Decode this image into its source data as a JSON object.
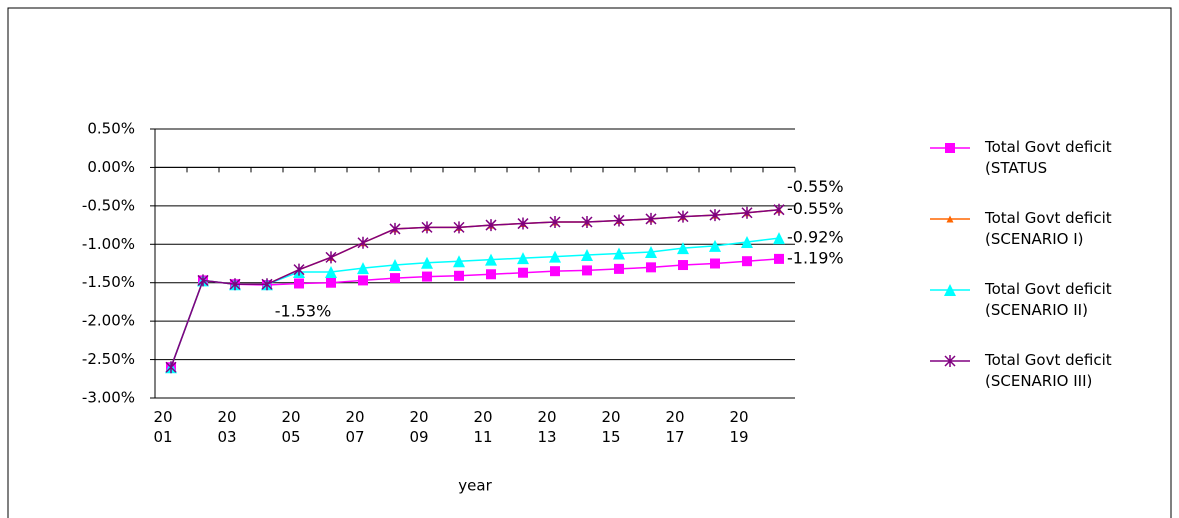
{
  "chart_data": {
    "type": "line",
    "x_label": "year",
    "categories": [
      "2001",
      null,
      "2003",
      null,
      "2005",
      null,
      "2007",
      null,
      "2009",
      null,
      "2011",
      null,
      "2013",
      null,
      "2015",
      null,
      "2017",
      null,
      "2019",
      null
    ],
    "ylim": [
      -3,
      0.5
    ],
    "yticks": [
      {
        "value": -3,
        "label": "-3.00%"
      },
      {
        "value": -2.5,
        "label": "-2.50%"
      },
      {
        "value": -2,
        "label": "-2.00%"
      },
      {
        "value": -1.5,
        "label": "-1.50%"
      },
      {
        "value": -1,
        "label": "-1.00%"
      },
      {
        "value": -0.5,
        "label": "-0.50%"
      },
      {
        "value": 0,
        "label": "0.00%"
      },
      {
        "value": 0.5,
        "label": "0.50%"
      }
    ],
    "grid": true,
    "legend": "right",
    "series": [
      {
        "name": "Total Govt deficit (STATUS",
        "color": "#ff00ff",
        "marker": "square",
        "values": [
          -2.6,
          -1.47,
          -1.52,
          -1.53,
          -1.51,
          -1.5,
          -1.47,
          -1.44,
          -1.42,
          -1.41,
          -1.39,
          -1.37,
          -1.35,
          -1.34,
          -1.32,
          -1.3,
          -1.27,
          -1.25,
          -1.22,
          -1.19
        ],
        "value_labels": [
          null,
          null,
          null,
          "-1.53%",
          null,
          null,
          null,
          null,
          null,
          null,
          null,
          null,
          null,
          null,
          null,
          null,
          null,
          null,
          null,
          "-1.19%"
        ],
        "value_label_colors": [
          null,
          null,
          null,
          "#000000",
          null,
          null,
          null,
          null,
          null,
          null,
          null,
          null,
          null,
          null,
          null,
          null,
          null,
          null,
          null,
          "#ff00ff"
        ]
      },
      {
        "name": "Total Govt deficit (SCENARIO I)",
        "color": "#ff6600",
        "marker": "small-triangle",
        "values": [
          -2.6,
          -1.47,
          -1.52,
          -1.52,
          -1.33,
          -1.17,
          -0.98,
          -0.8,
          -0.78,
          -0.78,
          -0.75,
          -0.73,
          -0.71,
          -0.71,
          -0.69,
          -0.67,
          -0.64,
          -0.62,
          -0.59,
          -0.55
        ],
        "value_labels": [
          null,
          null,
          null,
          null,
          null,
          null,
          null,
          null,
          null,
          null,
          null,
          null,
          null,
          null,
          null,
          null,
          null,
          null,
          null,
          "-0.55%"
        ],
        "value_label_colors": [
          null,
          null,
          null,
          null,
          null,
          null,
          null,
          null,
          null,
          null,
          null,
          null,
          null,
          null,
          null,
          null,
          null,
          null,
          null,
          "#ff6600"
        ]
      },
      {
        "name": "Total Govt deficit (SCENARIO II)",
        "color": "#00ffff",
        "marker": "triangle",
        "values": [
          -2.6,
          -1.47,
          -1.52,
          -1.52,
          -1.36,
          -1.36,
          -1.31,
          -1.27,
          -1.24,
          -1.22,
          -1.2,
          -1.18,
          -1.16,
          -1.14,
          -1.12,
          -1.1,
          -1.05,
          -1.02,
          -0.97,
          -0.92
        ],
        "value_labels": [
          null,
          null,
          null,
          null,
          null,
          null,
          null,
          null,
          null,
          null,
          null,
          null,
          null,
          null,
          null,
          null,
          null,
          null,
          null,
          "-0.92%"
        ],
        "value_label_colors": [
          null,
          null,
          null,
          null,
          null,
          null,
          null,
          null,
          null,
          null,
          null,
          null,
          null,
          null,
          null,
          null,
          null,
          null,
          null,
          "#00ffff"
        ]
      },
      {
        "name": "Total Govt deficit (SCENARIO III)",
        "color": "#800080",
        "marker": "asterisk",
        "values": [
          -2.6,
          -1.47,
          -1.52,
          -1.52,
          -1.33,
          -1.17,
          -0.98,
          -0.8,
          -0.78,
          -0.78,
          -0.75,
          -0.73,
          -0.71,
          -0.71,
          -0.69,
          -0.67,
          -0.64,
          -0.62,
          -0.59,
          -0.55
        ],
        "value_labels": [
          null,
          null,
          null,
          null,
          null,
          null,
          null,
          null,
          null,
          null,
          null,
          null,
          null,
          null,
          null,
          null,
          null,
          null,
          null,
          "-0.55%"
        ],
        "value_label_colors": [
          null,
          null,
          null,
          null,
          null,
          null,
          null,
          null,
          null,
          null,
          null,
          null,
          null,
          null,
          null,
          null,
          null,
          null,
          null,
          "#800080"
        ]
      }
    ]
  }
}
